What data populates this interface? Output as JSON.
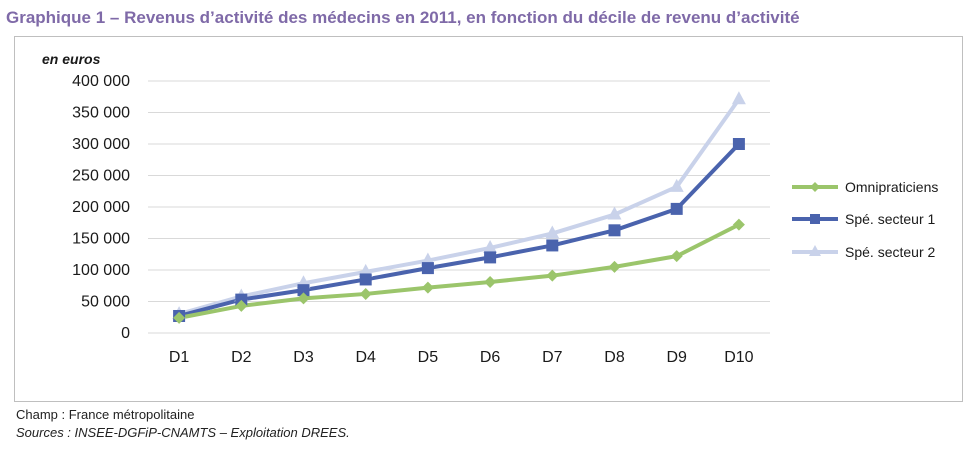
{
  "title": "Graphique 1 – Revenus d’activité des médecins en 2011, en fonction du décile de revenu d’activité",
  "footer": {
    "champ": "Champ : France métropolitaine",
    "sources": "Sources : INSEE-DGFiP-CNAMTS – Exploitation DREES."
  },
  "chart_data": {
    "type": "line",
    "unit_label": "en euros",
    "categories": [
      "D1",
      "D2",
      "D3",
      "D4",
      "D5",
      "D6",
      "D7",
      "D8",
      "D9",
      "D10"
    ],
    "ylim": [
      0,
      400000
    ],
    "yticks": [
      0,
      50000,
      100000,
      150000,
      200000,
      250000,
      300000,
      350000,
      400000
    ],
    "ytick_labels": [
      "0",
      "50 000",
      "100 000",
      "150 000",
      "200 000",
      "250 000",
      "300 000",
      "350 000",
      "400 000"
    ],
    "grid": true,
    "legend_position": "right",
    "series": [
      {
        "name": "Omnipraticiens",
        "color": "#9bc56b",
        "marker": "diamond",
        "values": [
          24000,
          43000,
          55000,
          62000,
          72000,
          81000,
          91000,
          105000,
          122000,
          172000
        ]
      },
      {
        "name": "Spé. secteur 1",
        "color": "#4a63ad",
        "marker": "square",
        "values": [
          27000,
          53000,
          68000,
          85000,
          103000,
          120000,
          139000,
          163000,
          197000,
          300000
        ]
      },
      {
        "name": "Spé. secteur 2",
        "color": "#c9d2ea",
        "marker": "triangle",
        "values": [
          30000,
          58000,
          79000,
          97000,
          115000,
          135000,
          158000,
          188000,
          232000,
          371000
        ]
      }
    ]
  }
}
